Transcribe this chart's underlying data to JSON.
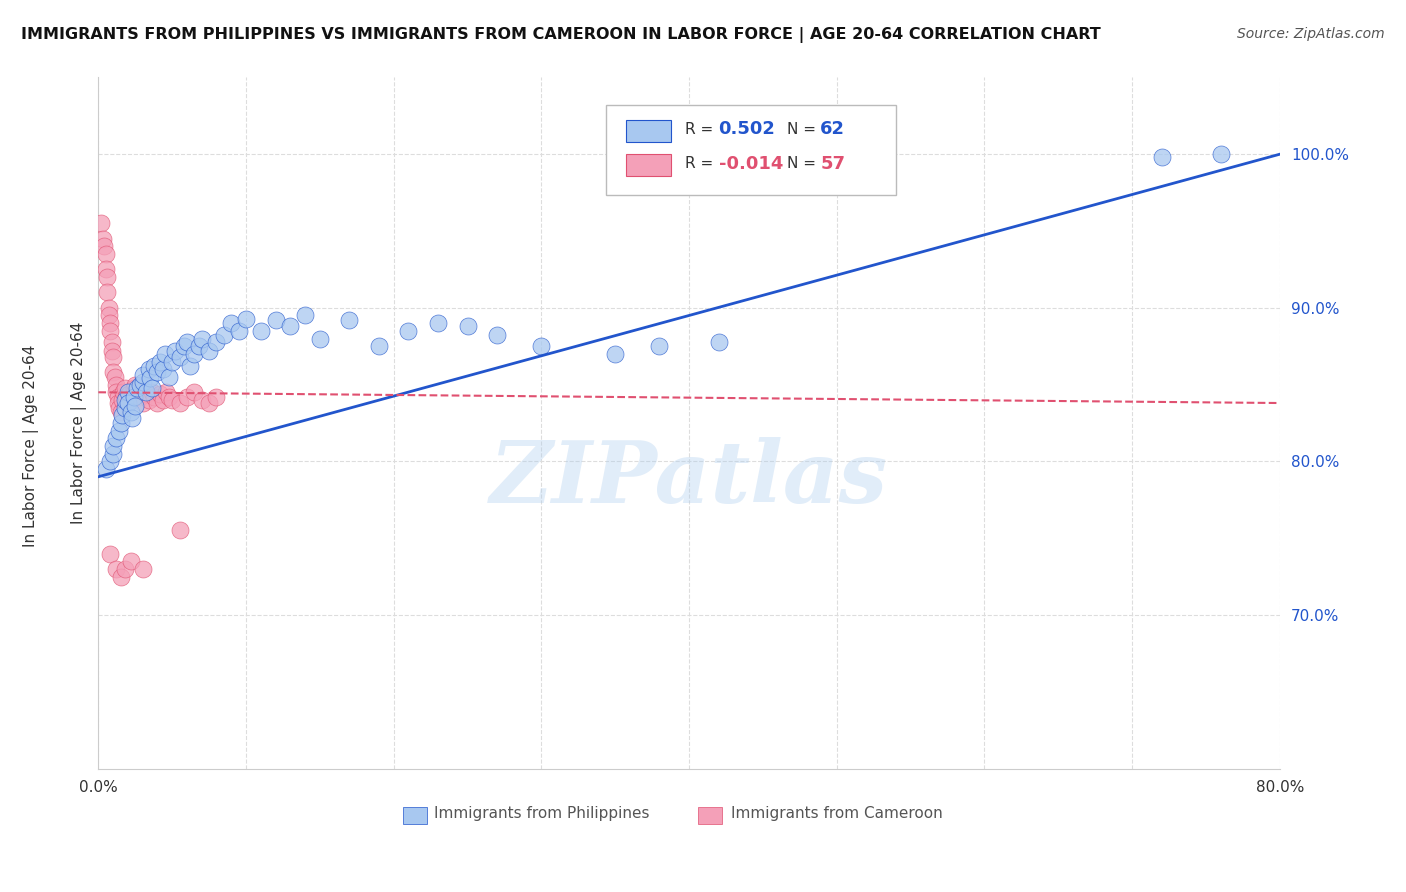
{
  "title": "IMMIGRANTS FROM PHILIPPINES VS IMMIGRANTS FROM CAMEROON IN LABOR FORCE | AGE 20-64 CORRELATION CHART",
  "source": "Source: ZipAtlas.com",
  "ylabel": "In Labor Force | Age 20-64",
  "legend_label1": "Immigrants from Philippines",
  "legend_label2": "Immigrants from Cameroon",
  "R1": 0.502,
  "N1": 62,
  "R2": -0.014,
  "N2": 57,
  "xlim": [
    0.0,
    0.8
  ],
  "ylim": [
    0.6,
    1.05
  ],
  "xticks": [
    0.0,
    0.1,
    0.2,
    0.3,
    0.4,
    0.5,
    0.6,
    0.7,
    0.8
  ],
  "ytick_positions": [
    0.7,
    0.8,
    0.9,
    1.0
  ],
  "ytick_labels": [
    "70.0%",
    "80.0%",
    "90.0%",
    "100.0%"
  ],
  "xtick_labels": [
    "0.0%",
    "",
    "",
    "",
    "",
    "",
    "",
    "",
    "80.0%"
  ],
  "color_blue": "#A8C8F0",
  "color_pink": "#F4A0B8",
  "line_color_blue": "#2255CC",
  "line_color_pink": "#E05070",
  "grid_color": "#DDDDDD",
  "watermark": "ZIPatlas",
  "blue_scatter_x": [
    0.005,
    0.008,
    0.01,
    0.01,
    0.012,
    0.014,
    0.015,
    0.016,
    0.018,
    0.018,
    0.02,
    0.02,
    0.022,
    0.023,
    0.024,
    0.025,
    0.026,
    0.028,
    0.03,
    0.03,
    0.032,
    0.034,
    0.035,
    0.036,
    0.038,
    0.04,
    0.042,
    0.044,
    0.045,
    0.048,
    0.05,
    0.052,
    0.055,
    0.058,
    0.06,
    0.062,
    0.065,
    0.068,
    0.07,
    0.075,
    0.08,
    0.085,
    0.09,
    0.095,
    0.1,
    0.11,
    0.12,
    0.13,
    0.14,
    0.15,
    0.17,
    0.19,
    0.21,
    0.23,
    0.25,
    0.27,
    0.3,
    0.35,
    0.38,
    0.42,
    0.72,
    0.76
  ],
  "blue_scatter_y": [
    0.795,
    0.8,
    0.805,
    0.81,
    0.815,
    0.82,
    0.825,
    0.83,
    0.835,
    0.84,
    0.845,
    0.838,
    0.832,
    0.828,
    0.842,
    0.836,
    0.848,
    0.85,
    0.852,
    0.856,
    0.845,
    0.86,
    0.854,
    0.848,
    0.862,
    0.858,
    0.865,
    0.86,
    0.87,
    0.855,
    0.865,
    0.872,
    0.868,
    0.875,
    0.878,
    0.862,
    0.87,
    0.875,
    0.88,
    0.872,
    0.878,
    0.882,
    0.89,
    0.885,
    0.893,
    0.885,
    0.892,
    0.888,
    0.895,
    0.88,
    0.892,
    0.875,
    0.885,
    0.89,
    0.888,
    0.882,
    0.875,
    0.87,
    0.875,
    0.878,
    0.998,
    1.0
  ],
  "pink_scatter_x": [
    0.002,
    0.003,
    0.004,
    0.005,
    0.005,
    0.006,
    0.006,
    0.007,
    0.007,
    0.008,
    0.008,
    0.009,
    0.009,
    0.01,
    0.01,
    0.011,
    0.012,
    0.012,
    0.013,
    0.013,
    0.014,
    0.015,
    0.016,
    0.017,
    0.018,
    0.019,
    0.02,
    0.021,
    0.022,
    0.024,
    0.025,
    0.026,
    0.028,
    0.03,
    0.032,
    0.034,
    0.036,
    0.038,
    0.04,
    0.042,
    0.044,
    0.046,
    0.048,
    0.05,
    0.055,
    0.06,
    0.065,
    0.07,
    0.075,
    0.08,
    0.008,
    0.012,
    0.015,
    0.018,
    0.022,
    0.03,
    0.055
  ],
  "pink_scatter_y": [
    0.955,
    0.945,
    0.94,
    0.935,
    0.925,
    0.92,
    0.91,
    0.9,
    0.895,
    0.89,
    0.885,
    0.878,
    0.872,
    0.868,
    0.858,
    0.855,
    0.85,
    0.845,
    0.842,
    0.838,
    0.835,
    0.832,
    0.84,
    0.845,
    0.848,
    0.842,
    0.838,
    0.844,
    0.84,
    0.848,
    0.85,
    0.845,
    0.842,
    0.838,
    0.844,
    0.84,
    0.845,
    0.842,
    0.838,
    0.844,
    0.84,
    0.845,
    0.842,
    0.84,
    0.838,
    0.842,
    0.845,
    0.84,
    0.838,
    0.842,
    0.74,
    0.73,
    0.725,
    0.73,
    0.735,
    0.73,
    0.755
  ],
  "blue_line_x0": 0.0,
  "blue_line_y0": 0.79,
  "blue_line_x1": 0.8,
  "blue_line_y1": 1.0,
  "pink_line_x0": 0.0,
  "pink_line_y0": 0.845,
  "pink_line_x1": 0.8,
  "pink_line_y1": 0.838
}
